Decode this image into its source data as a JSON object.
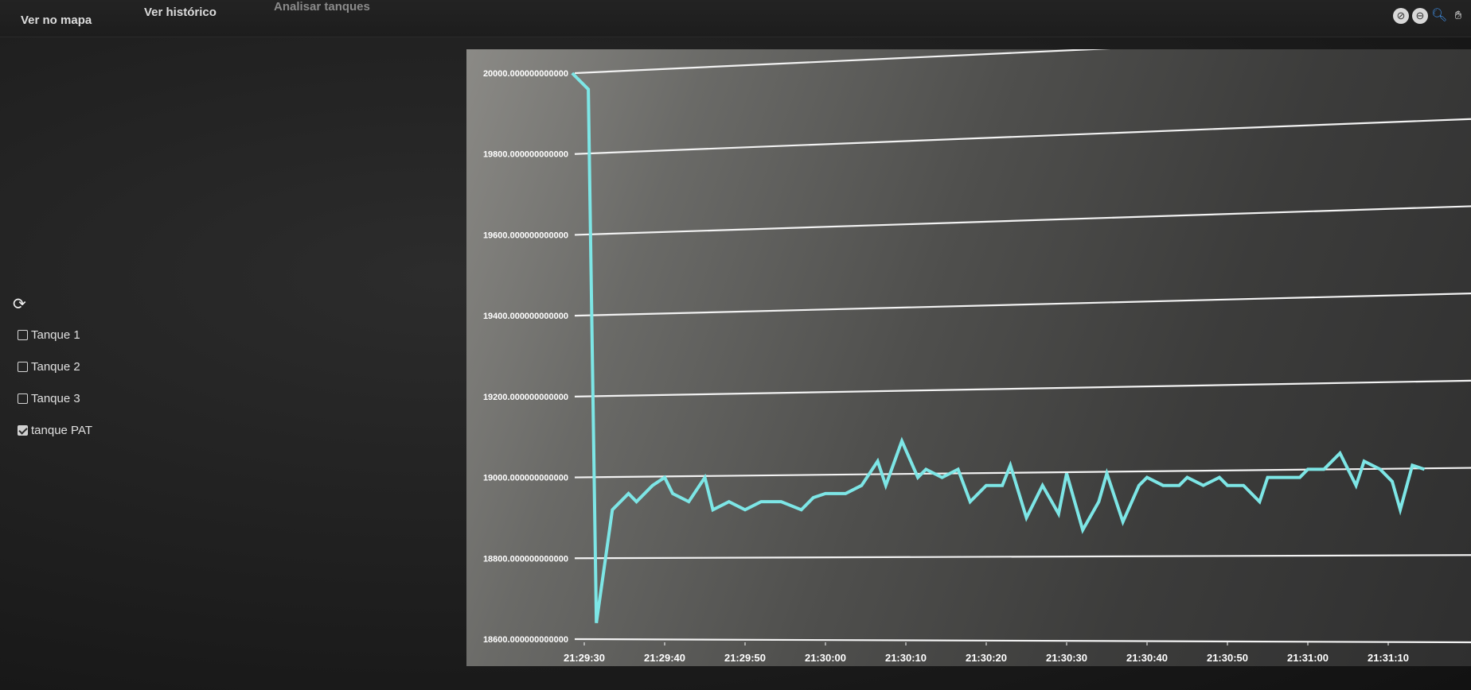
{
  "nav": {
    "items": [
      {
        "label": "Ver no mapa"
      },
      {
        "label": "Ver histórico"
      },
      {
        "label": "Analisar tanques"
      }
    ]
  },
  "toolbar": {
    "icons": [
      "zoom-reset-icon",
      "zoom-out-icon",
      "zoom-in-icon",
      "pan-hand-icon"
    ]
  },
  "sidebar": {
    "refresh_icon": "refresh-icon",
    "tanks": [
      {
        "label": "Tanque 1",
        "checked": false
      },
      {
        "label": "Tanque 2",
        "checked": false
      },
      {
        "label": "Tanque 3",
        "checked": false
      },
      {
        "label": "tanque PAT",
        "checked": true
      }
    ]
  },
  "colors": {
    "series": "#7de6e6",
    "grid": "#f2f2f2"
  },
  "chart_data": {
    "type": "line",
    "title": "",
    "xlabel": "",
    "ylabel": "",
    "ylim": [
      18600,
      20000
    ],
    "yticks": [
      "20000.000000000000",
      "19800.000000000000",
      "19600.000000000000",
      "19400.000000000000",
      "19200.000000000000",
      "19000.000000000000",
      "18800.000000000000",
      "18600.000000000000"
    ],
    "yticks_values": [
      20000,
      19800,
      19600,
      19400,
      19200,
      19000,
      18800,
      18600
    ],
    "xticks": [
      "21:29:30",
      "21:29:40",
      "21:29:50",
      "21:30:00",
      "21:30:10",
      "21:30:20",
      "21:30:30",
      "21:30:40",
      "21:30:50",
      "21:31:00",
      "21:31:10"
    ],
    "xticks_values": [
      0,
      10,
      20,
      30,
      40,
      50,
      60,
      70,
      80,
      90,
      100
    ],
    "grid": true,
    "series": [
      {
        "values": [
          [
            -1.5,
            20000
          ],
          [
            0.5,
            19960
          ],
          [
            1.5,
            18640
          ],
          [
            3.5,
            18920
          ],
          [
            5.5,
            18960
          ],
          [
            6.5,
            18940
          ],
          [
            8.5,
            18980
          ],
          [
            10.0,
            19000
          ],
          [
            11.0,
            18960
          ],
          [
            13.0,
            18940
          ],
          [
            15.0,
            19000
          ],
          [
            16.0,
            18920
          ],
          [
            18.0,
            18940
          ],
          [
            20.0,
            18920
          ],
          [
            22.0,
            18940
          ],
          [
            24.5,
            18940
          ],
          [
            27.0,
            18920
          ],
          [
            28.5,
            18950
          ],
          [
            30.0,
            18960
          ],
          [
            32.5,
            18960
          ],
          [
            34.5,
            18980
          ],
          [
            36.5,
            19040
          ],
          [
            37.5,
            18980
          ],
          [
            39.5,
            19090
          ],
          [
            41.5,
            19000
          ],
          [
            42.5,
            19020
          ],
          [
            44.5,
            19000
          ],
          [
            46.5,
            19020
          ],
          [
            48.0,
            18940
          ],
          [
            50.0,
            18980
          ],
          [
            52.0,
            18980
          ],
          [
            53.0,
            19030
          ],
          [
            55.0,
            18900
          ],
          [
            57.0,
            18980
          ],
          [
            59.0,
            18910
          ],
          [
            60.0,
            19010
          ],
          [
            62.0,
            18870
          ],
          [
            64.0,
            18940
          ],
          [
            65.0,
            19010
          ],
          [
            67.0,
            18890
          ],
          [
            69.0,
            18980
          ],
          [
            70.0,
            19000
          ],
          [
            72.0,
            18980
          ],
          [
            74.0,
            18980
          ],
          [
            75.0,
            19000
          ],
          [
            77.0,
            18980
          ],
          [
            79.0,
            19000
          ],
          [
            80.0,
            18980
          ],
          [
            82.0,
            18980
          ],
          [
            84.0,
            18940
          ],
          [
            85.0,
            19000
          ],
          [
            87.0,
            19000
          ],
          [
            89.0,
            19000
          ],
          [
            90.0,
            19020
          ],
          [
            92.0,
            19020
          ],
          [
            94.0,
            19060
          ],
          [
            96.0,
            18980
          ],
          [
            97.0,
            19040
          ],
          [
            99.0,
            19020
          ],
          [
            100.5,
            18990
          ],
          [
            101.5,
            18920
          ],
          [
            103.0,
            19030
          ],
          [
            104.5,
            19020
          ]
        ]
      }
    ]
  }
}
